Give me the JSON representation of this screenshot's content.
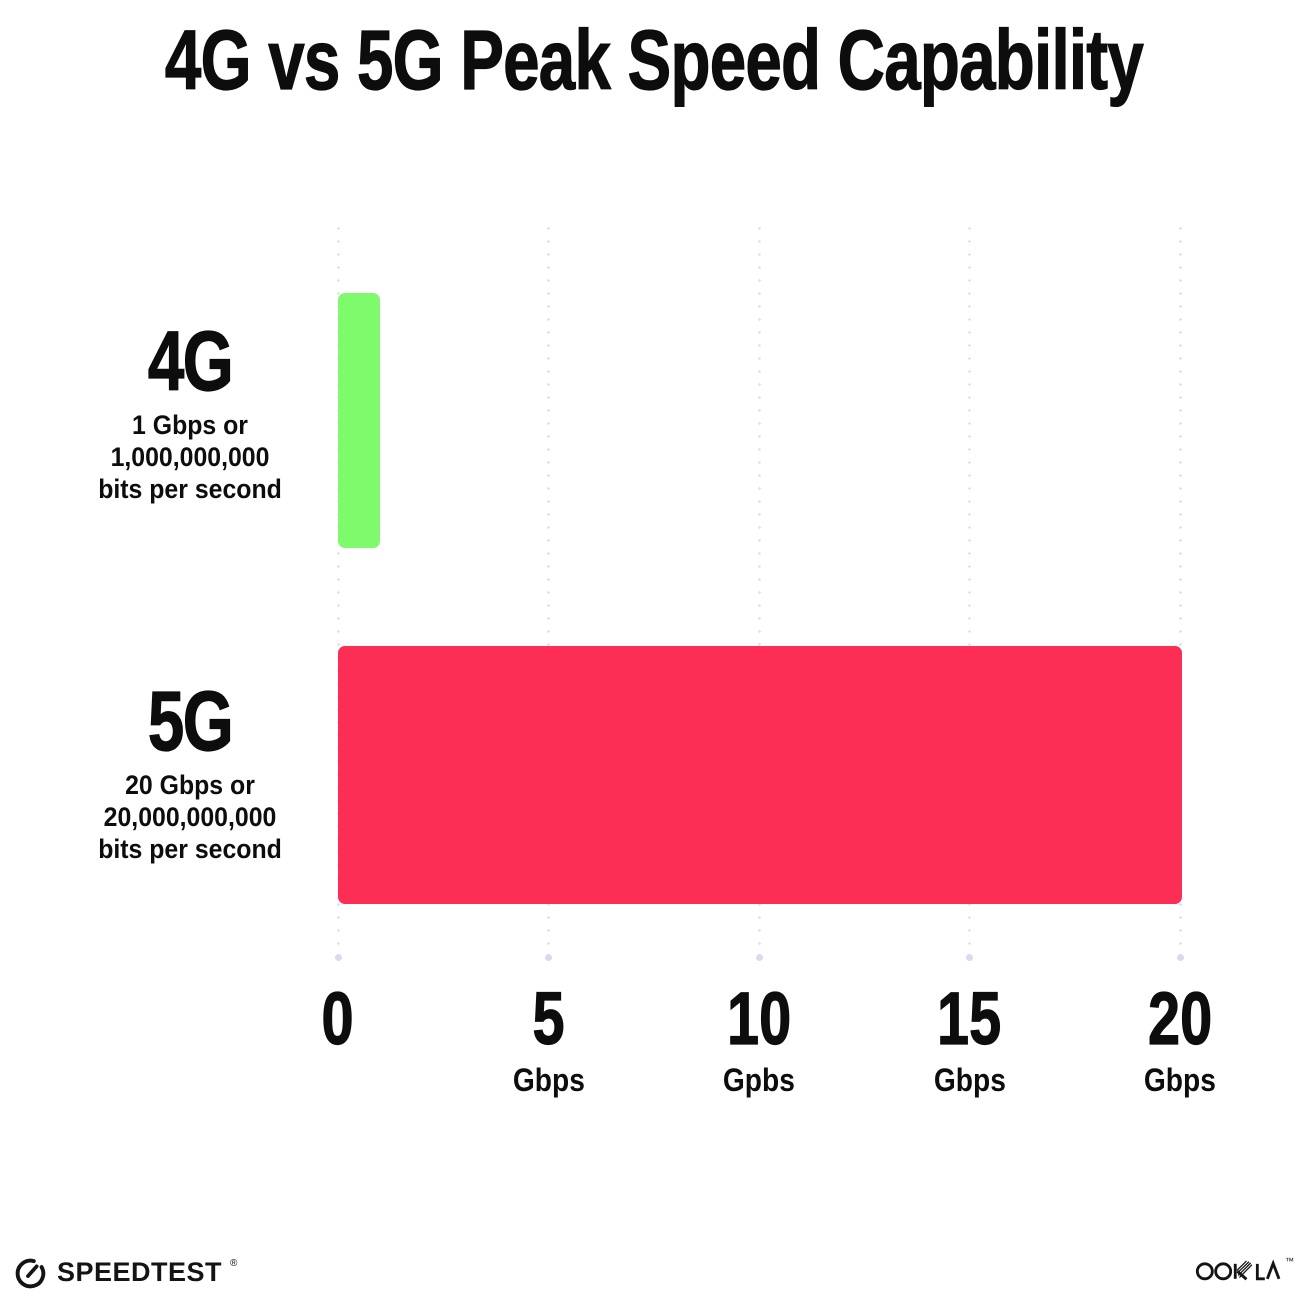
{
  "title": "4G vs 5G Peak Speed Capability",
  "chart_data": {
    "type": "bar",
    "orientation": "horizontal",
    "title": "4G vs 5G Peak Speed Capability",
    "categories": [
      "4G",
      "5G"
    ],
    "values": [
      1,
      20
    ],
    "value_unit": "Gbps",
    "bar_colors": [
      "#7EFA6C",
      "#FD2E56"
    ],
    "category_descriptions": [
      [
        "1 Gbps or",
        "1,000,000,000",
        "bits per second"
      ],
      [
        "20 Gbps or",
        "20,000,000,000",
        "bits per second"
      ]
    ],
    "x_ticks": [
      {
        "value": 0,
        "label": "0",
        "unit": ""
      },
      {
        "value": 5,
        "label": "5",
        "unit": "Gbps"
      },
      {
        "value": 10,
        "label": "10",
        "unit": "Gpbs"
      },
      {
        "value": 15,
        "label": "15",
        "unit": "Gbps"
      },
      {
        "value": 20,
        "label": "20",
        "unit": "Gbps"
      }
    ],
    "xlim": [
      0,
      20
    ],
    "grid": "vertical-dotted",
    "legend": "none"
  },
  "footer": {
    "speedtest_label": "SPEEDTEST",
    "speedtest_mark": "®",
    "ookla_label": "OOKLA",
    "ookla_mark": "™"
  },
  "colors": {
    "bar_4g": "#7EFA6C",
    "bar_5g": "#FD2E56",
    "gridline_dot": "#DFE1EC",
    "text": "#0D0D0D",
    "background": "#FFFFFF"
  }
}
